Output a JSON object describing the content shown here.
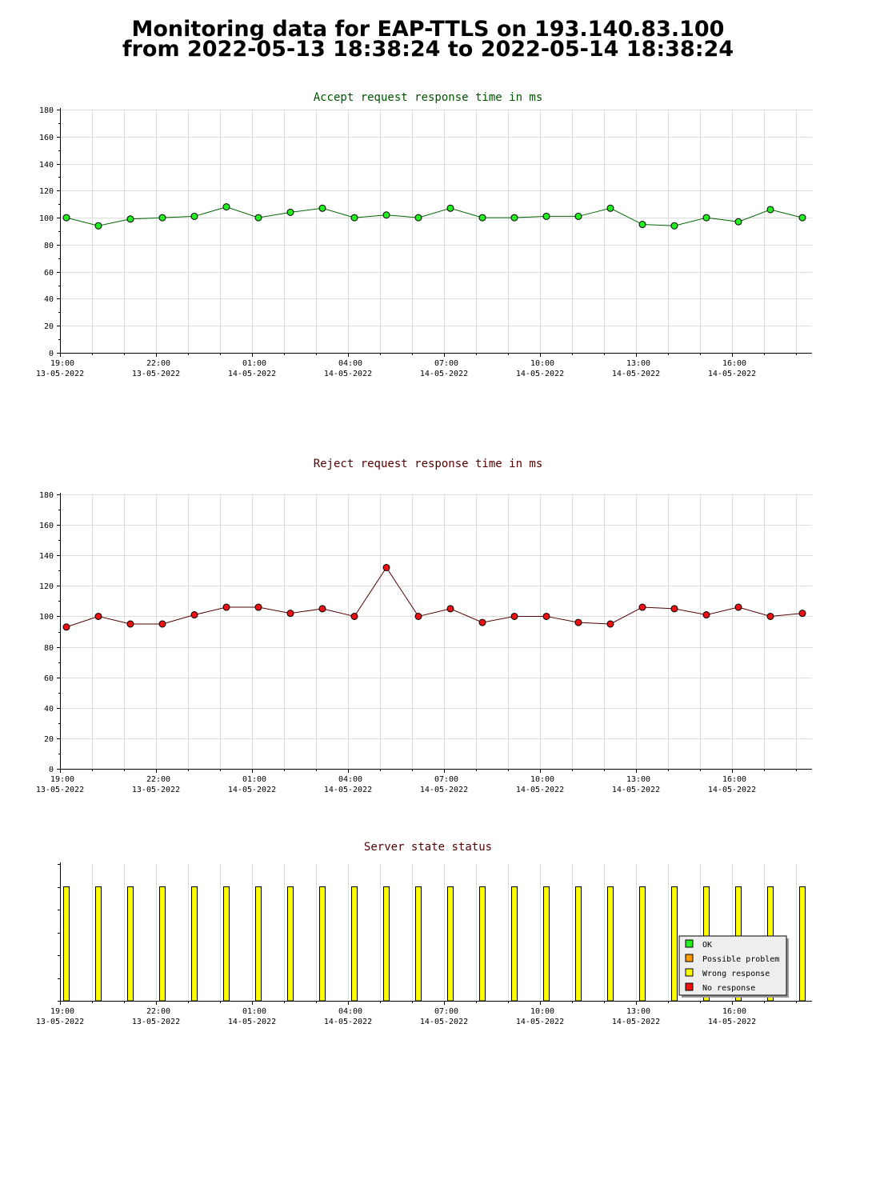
{
  "title": {
    "line1": "Monitoring data for EAP-TTLS on 193.140.83.100",
    "line2": "from 2022-05-13 18:38:24 to 2022-05-14 18:38:24"
  },
  "colors": {
    "accept_title": "#005500",
    "accept_line": "#006600",
    "accept_marker": "#22ee22",
    "reject_title": "#550000",
    "reject_line": "#550000",
    "reject_marker": "#ee1111",
    "status_bar": "#ffff00",
    "grid": "#dddddd"
  },
  "chart_data": [
    {
      "type": "line",
      "title": "Accept request response time in ms",
      "ylim": [
        0,
        180
      ],
      "yticks": [
        0,
        20,
        40,
        60,
        80,
        100,
        120,
        140,
        160,
        180
      ],
      "xlim": [
        0,
        23.5
      ],
      "xticks": [
        {
          "x": 0,
          "time": "19:00",
          "date": "13-05-2022"
        },
        {
          "x": 3,
          "time": "22:00",
          "date": "13-05-2022"
        },
        {
          "x": 6,
          "time": "01:00",
          "date": "14-05-2022"
        },
        {
          "x": 9,
          "time": "04:00",
          "date": "14-05-2022"
        },
        {
          "x": 12,
          "time": "07:00",
          "date": "14-05-2022"
        },
        {
          "x": 15,
          "time": "10:00",
          "date": "14-05-2022"
        },
        {
          "x": 18,
          "time": "13:00",
          "date": "14-05-2022"
        },
        {
          "x": 21,
          "time": "16:00",
          "date": "14-05-2022"
        }
      ],
      "x": [
        0.2,
        1.2,
        2.2,
        3.2,
        4.2,
        5.2,
        6.2,
        7.2,
        8.2,
        9.2,
        10.2,
        11.2,
        12.2,
        13.2,
        14.2,
        15.2,
        16.2,
        17.2,
        18.2,
        19.2,
        20.2,
        21.2,
        22.2,
        23.2
      ],
      "values": [
        100,
        94,
        99,
        100,
        101,
        108,
        100,
        104,
        107,
        100,
        102,
        100,
        107,
        100,
        100,
        101,
        101,
        107,
        95,
        94,
        100,
        97,
        106,
        100
      ],
      "grid": true
    },
    {
      "type": "line",
      "title": "Reject request response time in ms",
      "ylim": [
        0,
        180
      ],
      "yticks": [
        0,
        20,
        40,
        60,
        80,
        100,
        120,
        140,
        160,
        180
      ],
      "xlim": [
        0,
        23.5
      ],
      "xticks": [
        {
          "x": 0,
          "time": "19:00",
          "date": "13-05-2022"
        },
        {
          "x": 3,
          "time": "22:00",
          "date": "13-05-2022"
        },
        {
          "x": 6,
          "time": "01:00",
          "date": "14-05-2022"
        },
        {
          "x": 9,
          "time": "04:00",
          "date": "14-05-2022"
        },
        {
          "x": 12,
          "time": "07:00",
          "date": "14-05-2022"
        },
        {
          "x": 15,
          "time": "10:00",
          "date": "14-05-2022"
        },
        {
          "x": 18,
          "time": "13:00",
          "date": "14-05-2022"
        },
        {
          "x": 21,
          "time": "16:00",
          "date": "14-05-2022"
        }
      ],
      "x": [
        0.2,
        1.2,
        2.2,
        3.2,
        4.2,
        5.2,
        6.2,
        7.2,
        8.2,
        9.2,
        10.2,
        11.2,
        12.2,
        13.2,
        14.2,
        15.2,
        16.2,
        17.2,
        18.2,
        19.2,
        20.2,
        21.2,
        22.2,
        23.2
      ],
      "values": [
        93,
        100,
        95,
        95,
        101,
        106,
        106,
        102,
        105,
        100,
        132,
        100,
        105,
        96,
        100,
        100,
        96,
        95,
        106,
        105,
        101,
        106,
        100,
        102
      ],
      "grid": true
    },
    {
      "type": "bar",
      "title": "Server state status",
      "xlim": [
        0,
        23.5
      ],
      "ylim": [
        0,
        6
      ],
      "xticks": [
        {
          "x": 0,
          "time": "19:00",
          "date": "13-05-2022"
        },
        {
          "x": 3,
          "time": "22:00",
          "date": "13-05-2022"
        },
        {
          "x": 6,
          "time": "01:00",
          "date": "14-05-2022"
        },
        {
          "x": 9,
          "time": "04:00",
          "date": "14-05-2022"
        },
        {
          "x": 12,
          "time": "07:00",
          "date": "14-05-2022"
        },
        {
          "x": 15,
          "time": "10:00",
          "date": "14-05-2022"
        },
        {
          "x": 18,
          "time": "13:00",
          "date": "14-05-2022"
        },
        {
          "x": 21,
          "time": "16:00",
          "date": "14-05-2022"
        }
      ],
      "x": [
        0.2,
        1.2,
        2.2,
        3.2,
        4.2,
        5.2,
        6.2,
        7.2,
        8.2,
        9.2,
        10.2,
        11.2,
        12.2,
        13.2,
        14.2,
        15.2,
        16.2,
        17.2,
        18.2,
        19.2,
        20.2,
        21.2,
        22.2,
        23.2
      ],
      "values": [
        5,
        5,
        5,
        5,
        5,
        5,
        5,
        5,
        5,
        5,
        5,
        5,
        5,
        5,
        5,
        5,
        5,
        5,
        5,
        5,
        5,
        5,
        5,
        5
      ],
      "state": "Wrong response",
      "legend": {
        "placement": "bottom-right",
        "entries": [
          {
            "label": "OK",
            "color": "#22ee22"
          },
          {
            "label": "Possible problem",
            "color": "#ff9900"
          },
          {
            "label": "Wrong response",
            "color": "#ffff00"
          },
          {
            "label": "No response",
            "color": "#ee1111"
          }
        ]
      }
    }
  ]
}
